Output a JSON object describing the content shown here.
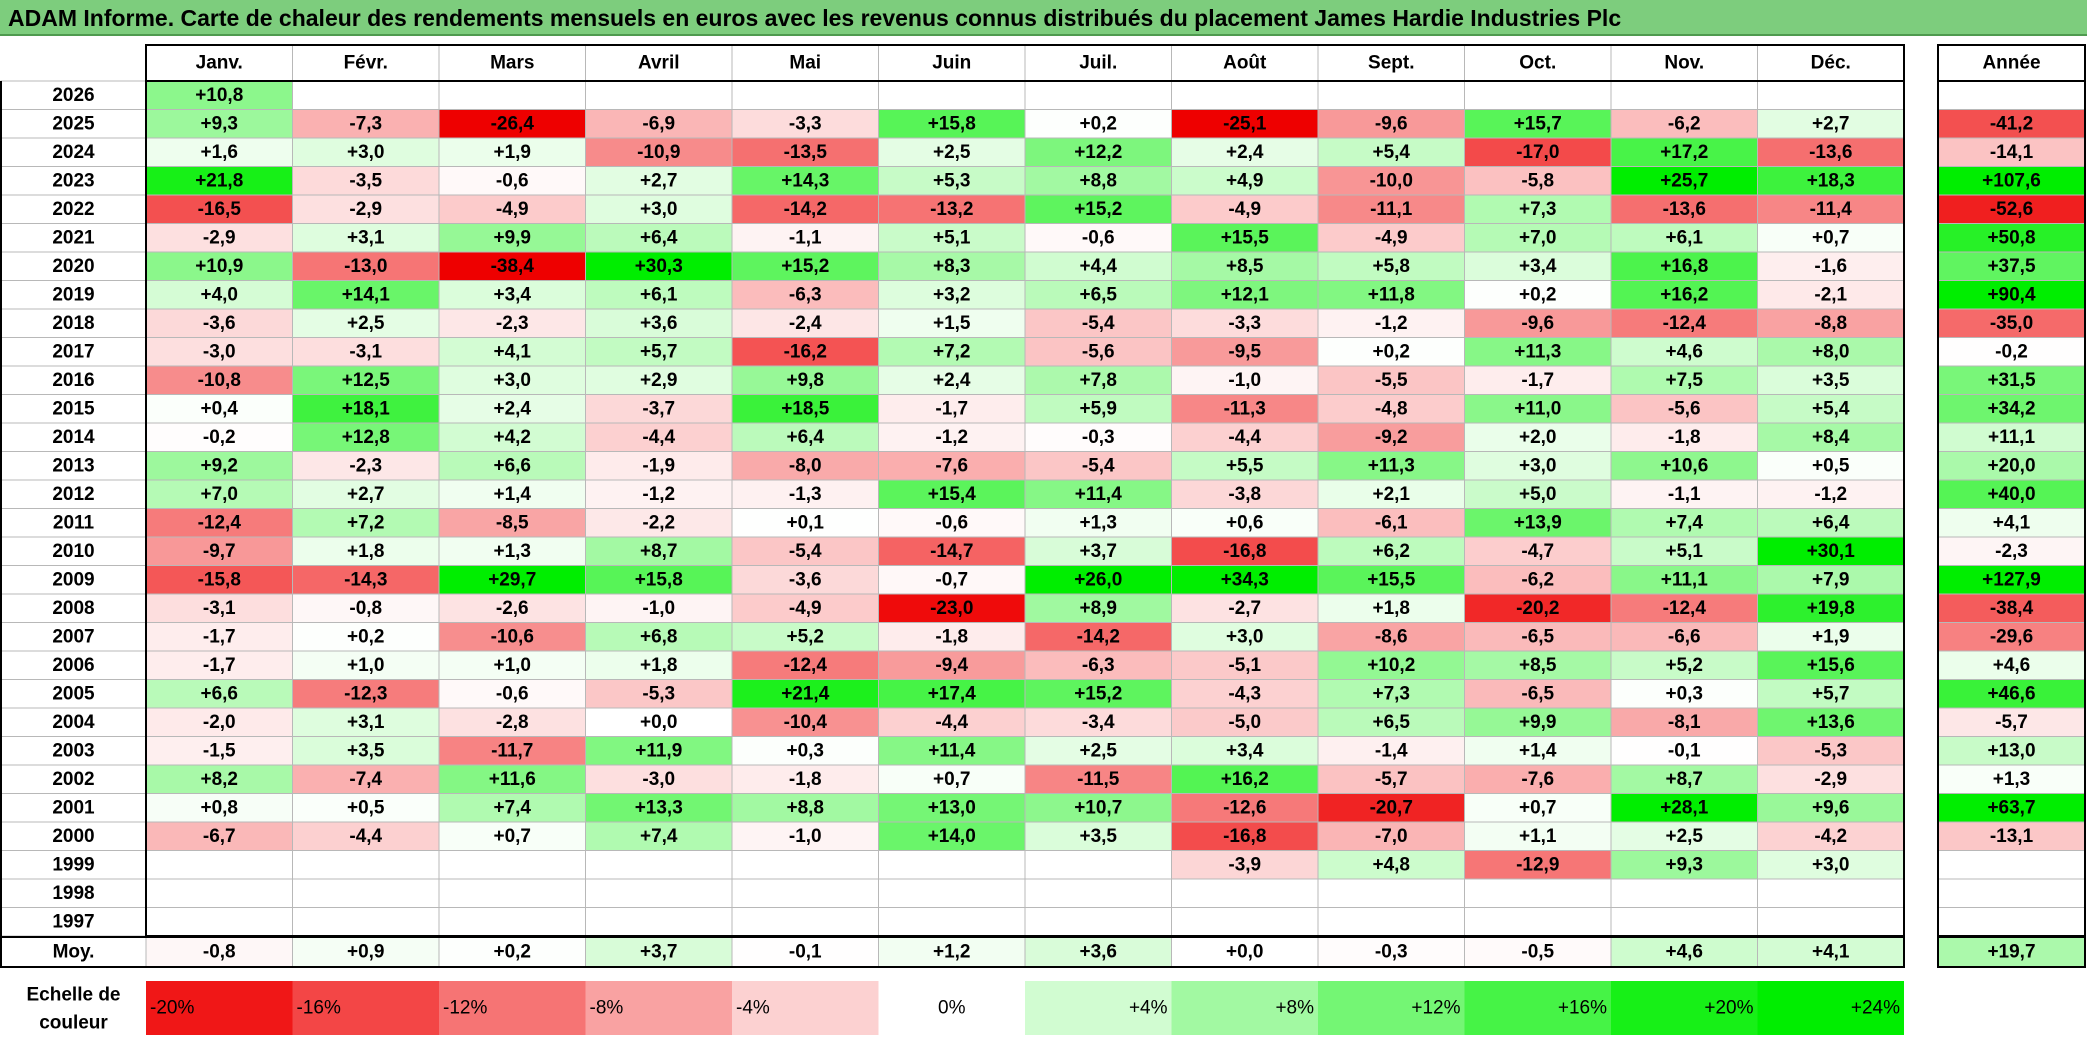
{
  "title": "ADAM Informe. Carte de chaleur des rendements mensuels en euros avec les revenus connus distribués du placement James Hardie Industries Plc",
  "chart_data": {
    "type": "heatmap",
    "title": "ADAM Informe. Carte de chaleur des rendements mensuels en euros avec les revenus connus distribués du placement James Hardie Industries Plc",
    "columns": [
      "Janv.",
      "Févr.",
      "Mars",
      "Avril",
      "Mai",
      "Juin",
      "Juil.",
      "Août",
      "Sept.",
      "Oct.",
      "Nov.",
      "Déc."
    ],
    "year_header": "Année",
    "rows": [
      {
        "year": "2026",
        "values": [
          "+10,8",
          "",
          "",
          "",
          "",
          "",
          "",
          "",
          "",
          "",
          "",
          ""
        ],
        "annual": ""
      },
      {
        "year": "2025",
        "values": [
          "+9,3",
          "-7,3",
          "-26,4",
          "-6,9",
          "-3,3",
          "+15,8",
          "+0,2",
          "-25,1",
          "-9,6",
          "+15,7",
          "-6,2",
          "+2,7"
        ],
        "annual": "-41,2"
      },
      {
        "year": "2024",
        "values": [
          "+1,6",
          "+3,0",
          "+1,9",
          "-10,9",
          "-13,5",
          "+2,5",
          "+12,2",
          "+2,4",
          "+5,4",
          "-17,0",
          "+17,2",
          "-13,6"
        ],
        "annual": "-14,1"
      },
      {
        "year": "2023",
        "values": [
          "+21,8",
          "-3,5",
          "-0,6",
          "+2,7",
          "+14,3",
          "+5,3",
          "+8,8",
          "+4,9",
          "-10,0",
          "-5,8",
          "+25,7",
          "+18,3"
        ],
        "annual": "+107,6"
      },
      {
        "year": "2022",
        "values": [
          "-16,5",
          "-2,9",
          "-4,9",
          "+3,0",
          "-14,2",
          "-13,2",
          "+15,2",
          "-4,9",
          "-11,1",
          "+7,3",
          "-13,6",
          "-11,4"
        ],
        "annual": "-52,6"
      },
      {
        "year": "2021",
        "values": [
          "-2,9",
          "+3,1",
          "+9,9",
          "+6,4",
          "-1,1",
          "+5,1",
          "-0,6",
          "+15,5",
          "-4,9",
          "+7,0",
          "+6,1",
          "+0,7"
        ],
        "annual": "+50,8"
      },
      {
        "year": "2020",
        "values": [
          "+10,9",
          "-13,0",
          "-38,4",
          "+30,3",
          "+15,2",
          "+8,3",
          "+4,4",
          "+8,5",
          "+5,8",
          "+3,4",
          "+16,8",
          "-1,6"
        ],
        "annual": "+37,5"
      },
      {
        "year": "2019",
        "values": [
          "+4,0",
          "+14,1",
          "+3,4",
          "+6,1",
          "-6,3",
          "+3,2",
          "+6,5",
          "+12,1",
          "+11,8",
          "+0,2",
          "+16,2",
          "-2,1"
        ],
        "annual": "+90,4"
      },
      {
        "year": "2018",
        "values": [
          "-3,6",
          "+2,5",
          "-2,3",
          "+3,6",
          "-2,4",
          "+1,5",
          "-5,4",
          "-3,3",
          "-1,2",
          "-9,6",
          "-12,4",
          "-8,8"
        ],
        "annual": "-35,0"
      },
      {
        "year": "2017",
        "values": [
          "-3,0",
          "-3,1",
          "+4,1",
          "+5,7",
          "-16,2",
          "+7,2",
          "-5,6",
          "-9,5",
          "+0,2",
          "+11,3",
          "+4,6",
          "+8,0"
        ],
        "annual": "-0,2"
      },
      {
        "year": "2016",
        "values": [
          "-10,8",
          "+12,5",
          "+3,0",
          "+2,9",
          "+9,8",
          "+2,4",
          "+7,8",
          "-1,0",
          "-5,5",
          "-1,7",
          "+7,5",
          "+3,5"
        ],
        "annual": "+31,5"
      },
      {
        "year": "2015",
        "values": [
          "+0,4",
          "+18,1",
          "+2,4",
          "-3,7",
          "+18,5",
          "-1,7",
          "+5,9",
          "-11,3",
          "-4,8",
          "+11,0",
          "-5,6",
          "+5,4"
        ],
        "annual": "+34,2"
      },
      {
        "year": "2014",
        "values": [
          "-0,2",
          "+12,8",
          "+4,2",
          "-4,4",
          "+6,4",
          "-1,2",
          "-0,3",
          "-4,4",
          "-9,2",
          "+2,0",
          "-1,8",
          "+8,4"
        ],
        "annual": "+11,1"
      },
      {
        "year": "2013",
        "values": [
          "+9,2",
          "-2,3",
          "+6,6",
          "-1,9",
          "-8,0",
          "-7,6",
          "-5,4",
          "+5,5",
          "+11,3",
          "+3,0",
          "+10,6",
          "+0,5"
        ],
        "annual": "+20,0"
      },
      {
        "year": "2012",
        "values": [
          "+7,0",
          "+2,7",
          "+1,4",
          "-1,2",
          "-1,3",
          "+15,4",
          "+11,4",
          "-3,8",
          "+2,1",
          "+5,0",
          "-1,1",
          "-1,2"
        ],
        "annual": "+40,0"
      },
      {
        "year": "2011",
        "values": [
          "-12,4",
          "+7,2",
          "-8,5",
          "-2,2",
          "+0,1",
          "-0,6",
          "+1,3",
          "+0,6",
          "-6,1",
          "+13,9",
          "+7,4",
          "+6,4"
        ],
        "annual": "+4,1"
      },
      {
        "year": "2010",
        "values": [
          "-9,7",
          "+1,8",
          "+1,3",
          "+8,7",
          "-5,4",
          "-14,7",
          "+3,7",
          "-16,8",
          "+6,2",
          "-4,7",
          "+5,1",
          "+30,1"
        ],
        "annual": "-2,3"
      },
      {
        "year": "2009",
        "values": [
          "-15,8",
          "-14,3",
          "+29,7",
          "+15,8",
          "-3,6",
          "-0,7",
          "+26,0",
          "+34,3",
          "+15,5",
          "-6,2",
          "+11,1",
          "+7,9"
        ],
        "annual": "+127,9"
      },
      {
        "year": "2008",
        "values": [
          "-3,1",
          "-0,8",
          "-2,6",
          "-1,0",
          "-4,9",
          "-23,0",
          "+8,9",
          "-2,7",
          "+1,8",
          "-20,2",
          "-12,4",
          "+19,8"
        ],
        "annual": "-38,4"
      },
      {
        "year": "2007",
        "values": [
          "-1,7",
          "+0,2",
          "-10,6",
          "+6,8",
          "+5,2",
          "-1,8",
          "-14,2",
          "+3,0",
          "-8,6",
          "-6,5",
          "-6,6",
          "+1,9"
        ],
        "annual": "-29,6"
      },
      {
        "year": "2006",
        "values": [
          "-1,7",
          "+1,0",
          "+1,0",
          "+1,8",
          "-12,4",
          "-9,4",
          "-6,3",
          "-5,1",
          "+10,2",
          "+8,5",
          "+5,2",
          "+15,6"
        ],
        "annual": "+4,6"
      },
      {
        "year": "2005",
        "values": [
          "+6,6",
          "-12,3",
          "-0,6",
          "-5,3",
          "+21,4",
          "+17,4",
          "+15,2",
          "-4,3",
          "+7,3",
          "-6,5",
          "+0,3",
          "+5,7"
        ],
        "annual": "+46,6"
      },
      {
        "year": "2004",
        "values": [
          "-2,0",
          "+3,1",
          "-2,8",
          "+0,0",
          "-10,4",
          "-4,4",
          "-3,4",
          "-5,0",
          "+6,5",
          "+9,9",
          "-8,1",
          "+13,6"
        ],
        "annual": "-5,7"
      },
      {
        "year": "2003",
        "values": [
          "-1,5",
          "+3,5",
          "-11,7",
          "+11,9",
          "+0,3",
          "+11,4",
          "+2,5",
          "+3,4",
          "-1,4",
          "+1,4",
          "-0,1",
          "-5,3"
        ],
        "annual": "+13,0"
      },
      {
        "year": "2002",
        "values": [
          "+8,2",
          "-7,4",
          "+11,6",
          "-3,0",
          "-1,8",
          "+0,7",
          "-11,5",
          "+16,2",
          "-5,7",
          "-7,6",
          "+8,7",
          "-2,9"
        ],
        "annual": "+1,3"
      },
      {
        "year": "2001",
        "values": [
          "+0,8",
          "+0,5",
          "+7,4",
          "+13,3",
          "+8,8",
          "+13,0",
          "+10,7",
          "-12,6",
          "-20,7",
          "+0,7",
          "+28,1",
          "+9,6"
        ],
        "annual": "+63,7"
      },
      {
        "year": "2000",
        "values": [
          "-6,7",
          "-4,4",
          "+0,7",
          "+7,4",
          "-1,0",
          "+14,0",
          "+3,5",
          "-16,8",
          "-7,0",
          "+1,1",
          "+2,5",
          "-4,2"
        ],
        "annual": "-13,1"
      },
      {
        "year": "1999",
        "values": [
          "",
          "",
          "",
          "",
          "",
          "",
          "",
          "-3,9",
          "+4,8",
          "-12,9",
          "+9,3",
          "+3,0"
        ],
        "annual": ""
      },
      {
        "year": "1998",
        "values": [
          "",
          "",
          "",
          "",
          "",
          "",
          "",
          "",
          "",
          "",
          "",
          ""
        ],
        "annual": ""
      },
      {
        "year": "1997",
        "values": [
          "",
          "",
          "",
          "",
          "",
          "",
          "",
          "",
          "",
          "",
          "",
          ""
        ],
        "annual": ""
      }
    ],
    "average": {
      "label": "Moy.",
      "values": [
        "-0,8",
        "+0,9",
        "+0,2",
        "+3,7",
        "-0,1",
        "+1,2",
        "+3,6",
        "+0,0",
        "-0,3",
        "-0,5",
        "+4,6",
        "+4,1"
      ],
      "annual": "+19,7"
    },
    "color_scale": {
      "label_line1": "Echelle de",
      "label_line2": "couleur",
      "steps": [
        "-20%",
        "-16%",
        "-12%",
        "-8%",
        "-4%",
        "0%",
        "+4%",
        "+8%",
        "+12%",
        "+16%",
        "+20%",
        "+24%"
      ],
      "negative_color": "#ee0000",
      "positive_color": "#00ee00",
      "neutral_color": "#ffffff"
    }
  }
}
